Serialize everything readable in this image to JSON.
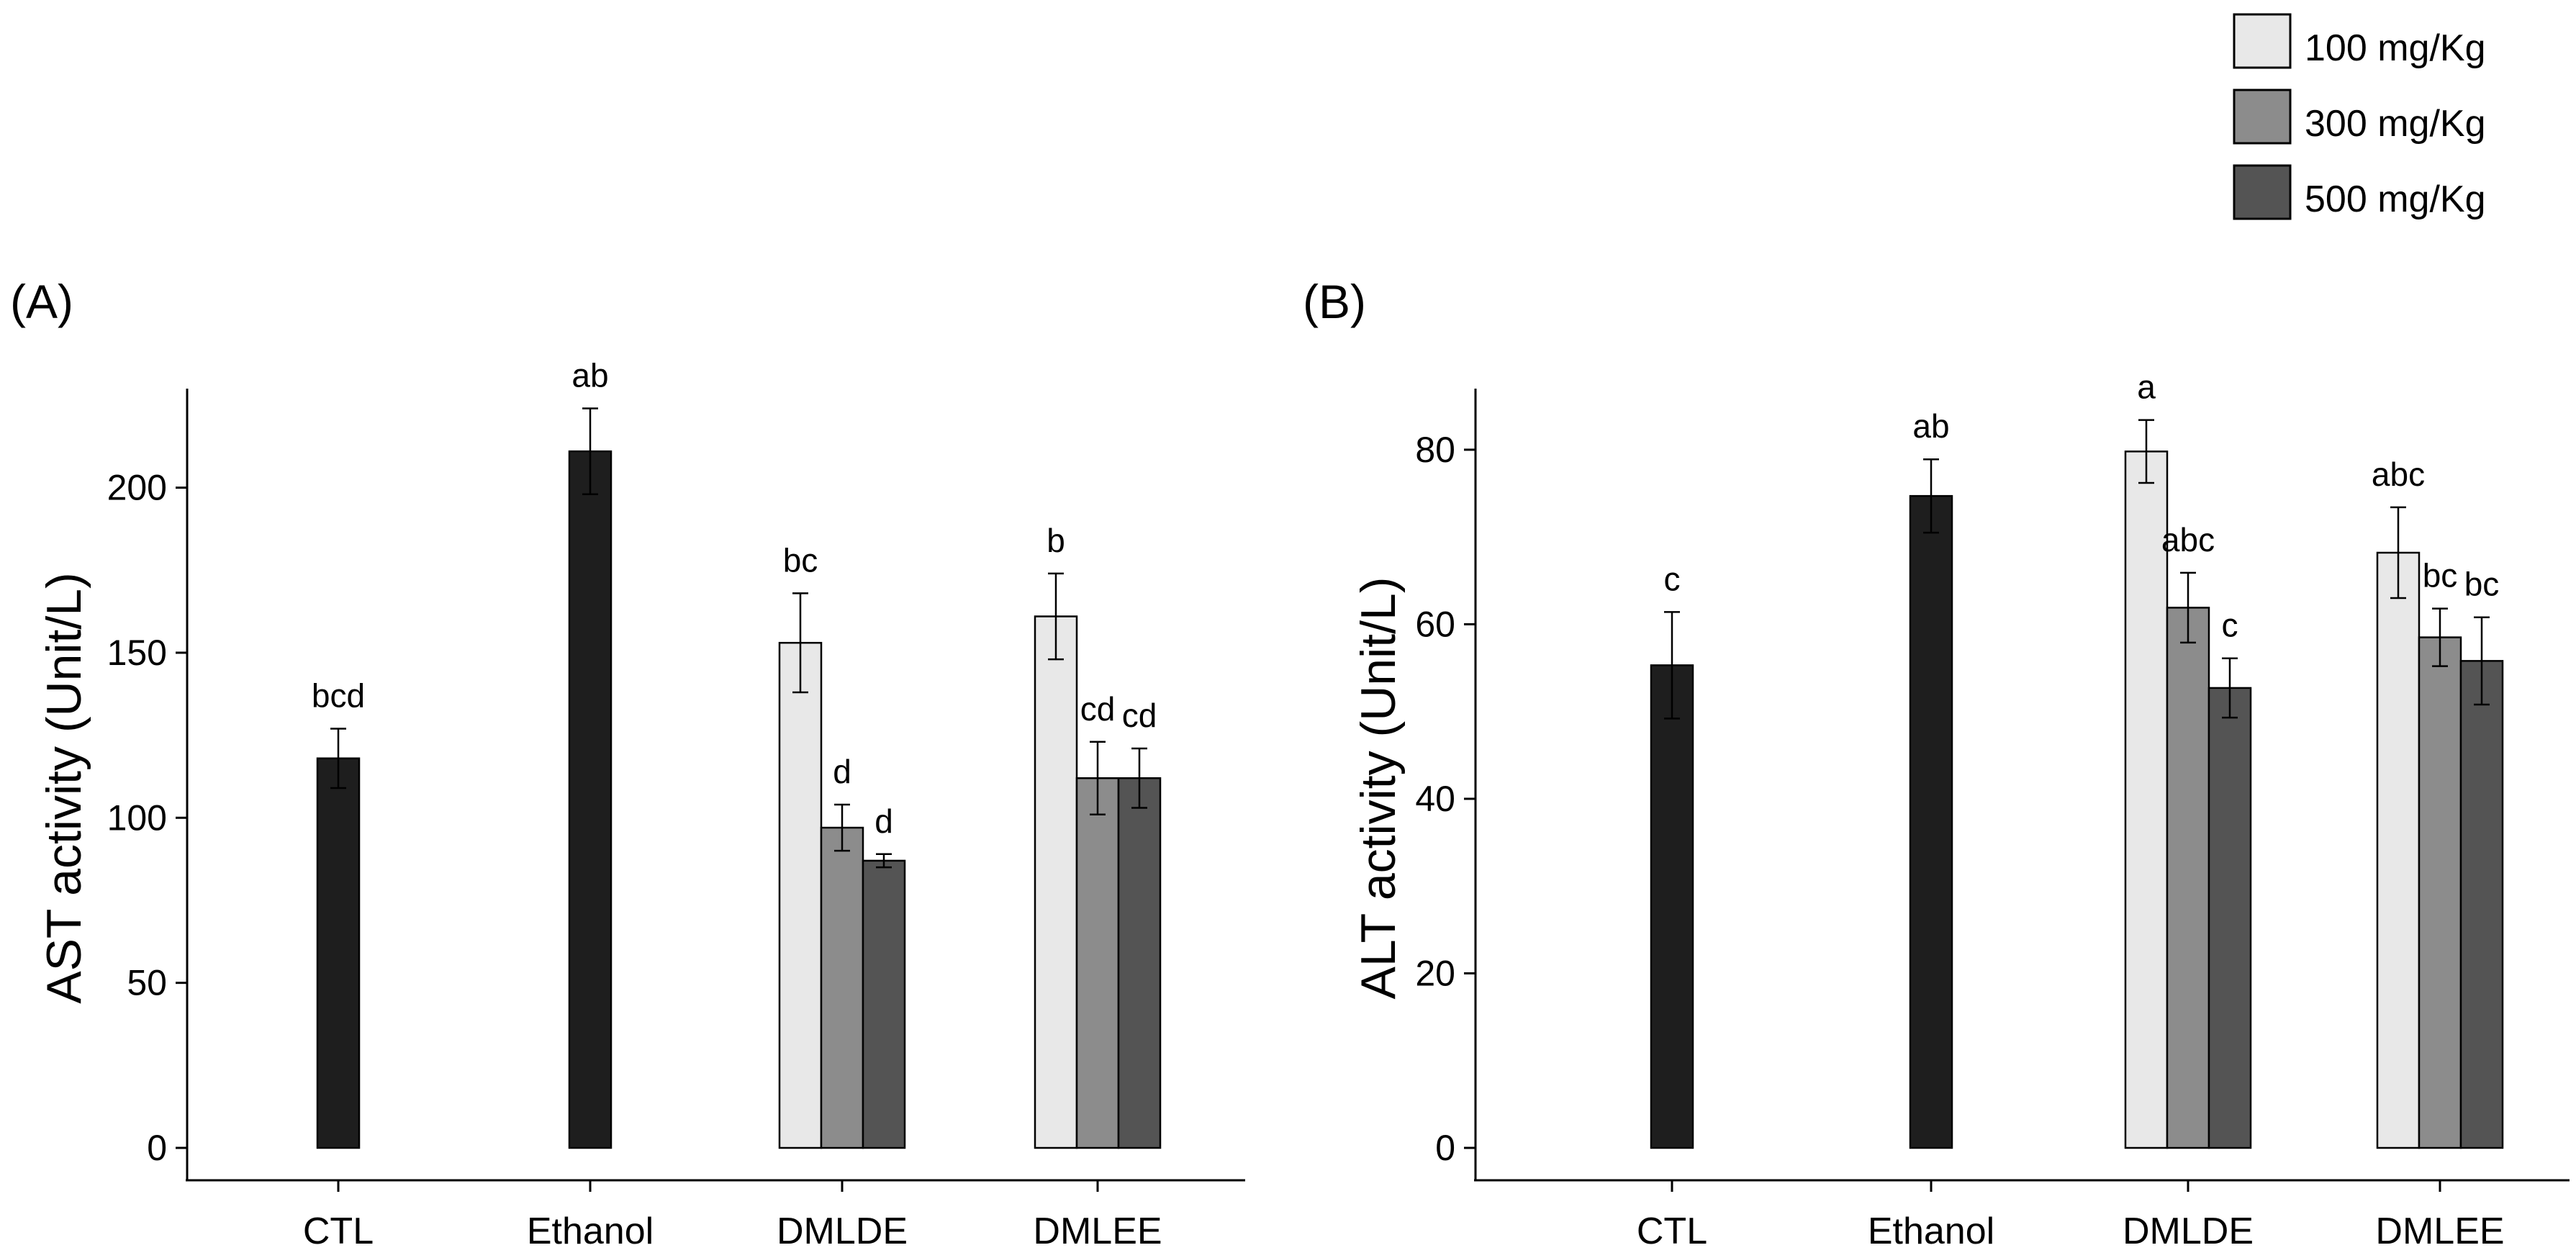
{
  "legend": {
    "items": [
      {
        "label": "100 mg/Kg",
        "color": "#e8e8e8"
      },
      {
        "label": "300 mg/Kg",
        "color": "#8c8c8c"
      },
      {
        "label": "500 mg/Kg",
        "color": "#545454"
      }
    ],
    "control_color": "#1e1e1e"
  },
  "chart_data": [
    {
      "type": "bar",
      "panel_label": "(A)",
      "title": "",
      "xlabel": "",
      "ylabel": "AST activity (Unit/L)",
      "ylim": [
        0,
        230
      ],
      "yticks": [
        0,
        50,
        100,
        150,
        200
      ],
      "categories": [
        "CTL",
        "Ethanol",
        "DMLDE",
        "DMLEE"
      ],
      "series": [
        {
          "name": "Control",
          "values": [
            118,
            211,
            null,
            null
          ],
          "errors": [
            9,
            13,
            null,
            null
          ],
          "labels": [
            "bcd",
            "ab",
            null,
            null
          ]
        },
        {
          "name": "100 mg/Kg",
          "values": [
            null,
            null,
            153,
            161
          ],
          "errors": [
            null,
            null,
            15,
            13
          ],
          "labels": [
            null,
            null,
            "bc",
            "b"
          ]
        },
        {
          "name": "300 mg/Kg",
          "values": [
            null,
            null,
            97,
            112
          ],
          "errors": [
            null,
            null,
            7,
            11
          ],
          "labels": [
            null,
            null,
            "d",
            "cd"
          ]
        },
        {
          "name": "500 mg/Kg",
          "values": [
            null,
            null,
            87,
            112
          ],
          "errors": [
            null,
            null,
            2,
            9
          ],
          "labels": [
            null,
            null,
            "d",
            "cd"
          ]
        }
      ]
    },
    {
      "type": "bar",
      "panel_label": "(B)",
      "title": "",
      "xlabel": "",
      "ylabel": "ALT activity (Unit/L)",
      "ylim": [
        0,
        87
      ],
      "yticks": [
        0,
        20,
        40,
        60,
        80
      ],
      "categories": [
        "CTL",
        "Ethanol",
        "DMLDE",
        "DMLEE"
      ],
      "series": [
        {
          "name": "Control",
          "values": [
            55.3,
            74.7,
            null,
            null
          ],
          "errors": [
            6.1,
            4.2,
            null,
            null
          ],
          "labels": [
            "c",
            "ab",
            null,
            null
          ]
        },
        {
          "name": "100 mg/Kg",
          "values": [
            null,
            null,
            79.8,
            68.2
          ],
          "errors": [
            null,
            null,
            3.6,
            5.2
          ],
          "labels": [
            null,
            null,
            "a",
            "abc"
          ]
        },
        {
          "name": "300 mg/Kg",
          "values": [
            null,
            null,
            61.9,
            58.5
          ],
          "errors": [
            null,
            null,
            4.0,
            3.3
          ],
          "labels": [
            null,
            null,
            "abc",
            "bc"
          ]
        },
        {
          "name": "500 mg/Kg",
          "values": [
            null,
            null,
            52.7,
            55.8
          ],
          "errors": [
            null,
            null,
            3.4,
            5.0
          ],
          "labels": [
            null,
            null,
            "c",
            "bc"
          ]
        }
      ]
    }
  ]
}
